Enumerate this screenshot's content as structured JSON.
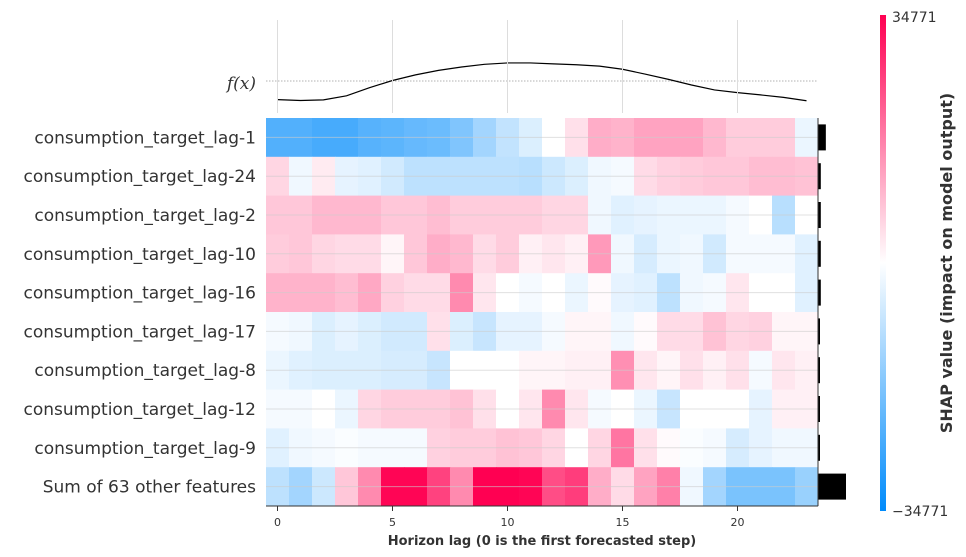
{
  "chart_data": {
    "type": "heatmap",
    "fx_label": "f(x)",
    "xlabel": "Horizon lag (0 is the first forecasted step)",
    "colorbar": {
      "label": "SHAP value (impact on model output)",
      "max_label": "34771",
      "min_label": "−34771",
      "min": -34771,
      "max": 34771
    },
    "x": [
      0,
      1,
      2,
      3,
      4,
      5,
      6,
      7,
      8,
      9,
      10,
      11,
      12,
      13,
      14,
      15,
      16,
      17,
      18,
      19,
      20,
      21,
      22,
      23
    ],
    "xticks": [
      0,
      5,
      10,
      15,
      20
    ],
    "xtick_labels": [
      "0",
      "5",
      "10",
      "15",
      "20"
    ],
    "fx_values": [
      0.15,
      0.11,
      0.14,
      0.32,
      0.68,
      1.0,
      1.25,
      1.45,
      1.6,
      1.72,
      1.78,
      1.78,
      1.74,
      1.7,
      1.64,
      1.5,
      1.28,
      1.05,
      0.8,
      0.58,
      0.46,
      0.36,
      0.25,
      0.1
    ],
    "rows": [
      {
        "label": "consumption_target_lag-1",
        "importance": 0.28,
        "values": [
          -0.68,
          -0.68,
          -0.72,
          -0.72,
          -0.66,
          -0.64,
          -0.6,
          -0.58,
          -0.5,
          -0.36,
          -0.24,
          -0.14,
          0.0,
          0.12,
          0.32,
          0.3,
          0.36,
          0.36,
          0.36,
          0.28,
          0.2,
          0.2,
          0.2,
          -0.08
        ]
      },
      {
        "label": "consumption_target_lag-24",
        "importance": 0.1,
        "values": [
          0.16,
          -0.06,
          0.08,
          -0.1,
          -0.12,
          -0.18,
          -0.26,
          -0.26,
          -0.26,
          -0.26,
          -0.26,
          -0.28,
          -0.2,
          -0.14,
          -0.06,
          -0.04,
          0.14,
          0.18,
          0.2,
          0.22,
          0.22,
          0.26,
          0.26,
          0.24
        ]
      },
      {
        "label": "consumption_target_lag-2",
        "importance": 0.1,
        "values": [
          0.22,
          0.22,
          0.28,
          0.28,
          0.28,
          0.22,
          0.22,
          0.26,
          0.2,
          0.2,
          0.2,
          0.2,
          0.16,
          0.16,
          -0.06,
          -0.12,
          -0.1,
          -0.08,
          -0.08,
          -0.08,
          -0.04,
          0.0,
          -0.28,
          0.0
        ]
      },
      {
        "label": "consumption_target_lag-10",
        "importance": 0.1,
        "values": [
          0.2,
          0.22,
          0.16,
          0.14,
          0.14,
          0.04,
          0.22,
          0.32,
          0.28,
          0.14,
          0.2,
          0.06,
          0.1,
          0.06,
          0.4,
          -0.06,
          -0.16,
          -0.08,
          -0.06,
          -0.18,
          -0.04,
          -0.04,
          -0.04,
          -0.12
        ]
      },
      {
        "label": "consumption_target_lag-16",
        "importance": 0.1,
        "values": [
          0.3,
          0.3,
          0.3,
          0.26,
          0.34,
          0.18,
          0.14,
          0.14,
          0.46,
          0.1,
          0.0,
          -0.04,
          0.0,
          -0.08,
          0.02,
          -0.1,
          -0.12,
          -0.26,
          -0.06,
          -0.04,
          0.1,
          0.0,
          0.0,
          -0.12
        ]
      },
      {
        "label": "consumption_target_lag-17",
        "importance": 0.07,
        "values": [
          -0.04,
          -0.06,
          -0.14,
          -0.1,
          -0.14,
          -0.18,
          -0.18,
          0.12,
          -0.14,
          -0.22,
          -0.1,
          -0.1,
          -0.04,
          0.04,
          0.04,
          -0.06,
          0.02,
          0.14,
          0.14,
          0.24,
          0.16,
          0.18,
          0.04,
          0.04
        ]
      },
      {
        "label": "consumption_target_lag-8",
        "importance": 0.07,
        "values": [
          -0.08,
          -0.12,
          -0.14,
          -0.14,
          -0.14,
          -0.16,
          -0.16,
          -0.22,
          0.0,
          0.0,
          0.0,
          0.04,
          0.04,
          0.06,
          0.06,
          0.44,
          0.1,
          0.04,
          0.12,
          0.06,
          0.12,
          -0.04,
          0.1,
          0.06
        ]
      },
      {
        "label": "consumption_target_lag-12",
        "importance": 0.07,
        "values": [
          -0.04,
          -0.04,
          0.0,
          -0.08,
          0.16,
          0.2,
          0.2,
          0.2,
          0.24,
          0.12,
          0.0,
          0.1,
          0.46,
          0.1,
          -0.04,
          0.0,
          -0.08,
          -0.22,
          0.0,
          0.0,
          0.0,
          -0.1,
          0.06,
          0.06
        ]
      },
      {
        "label": "consumption_target_lag-9",
        "importance": 0.07,
        "values": [
          -0.12,
          -0.06,
          -0.04,
          -0.02,
          -0.04,
          -0.04,
          -0.04,
          0.18,
          0.2,
          0.2,
          0.24,
          0.22,
          0.16,
          0.0,
          0.16,
          0.54,
          0.12,
          0.02,
          -0.02,
          -0.04,
          -0.16,
          -0.1,
          -0.06,
          -0.06
        ]
      },
      {
        "label": "Sum of 63 other features",
        "importance": 1.0,
        "values": [
          -0.26,
          -0.36,
          -0.2,
          0.22,
          0.46,
          0.98,
          0.98,
          0.74,
          0.46,
          1.0,
          1.0,
          0.98,
          0.7,
          0.76,
          0.32,
          0.14,
          0.36,
          0.5,
          -0.06,
          -0.36,
          -0.52,
          -0.52,
          -0.52,
          -0.4
        ]
      }
    ]
  }
}
